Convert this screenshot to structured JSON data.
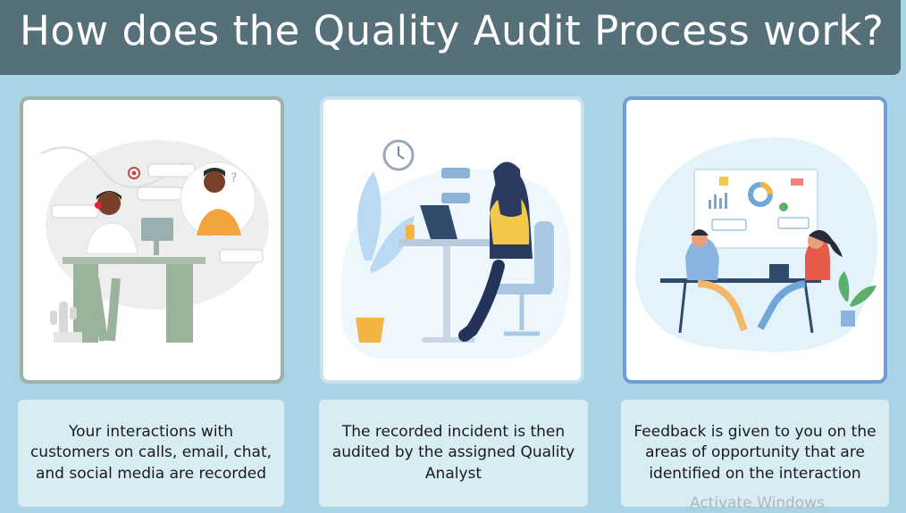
{
  "header": {
    "title": "How does the Quality Audit Process work?"
  },
  "steps": [
    {
      "caption": "Your interactions with customers on calls, email, chat, and social media are recorded"
    },
    {
      "caption": "The recorded incident is then audited by the assigned Quality Analyst"
    },
    {
      "caption": "Feedback is given to you on the areas of opportunity that are identified on the interaction"
    }
  ],
  "watermark": "Activate Windows",
  "colors": {
    "background": "#a8d4e6",
    "title_bar": "#56707a",
    "caption_box": "#d8ecf4",
    "card1_border": "#9bb3a5",
    "card2_border": "#c9e2f0",
    "card3_border": "#6f9ed6"
  },
  "icons": [
    "customer-service-illustration",
    "quality-analyst-illustration",
    "feedback-meeting-illustration"
  ]
}
